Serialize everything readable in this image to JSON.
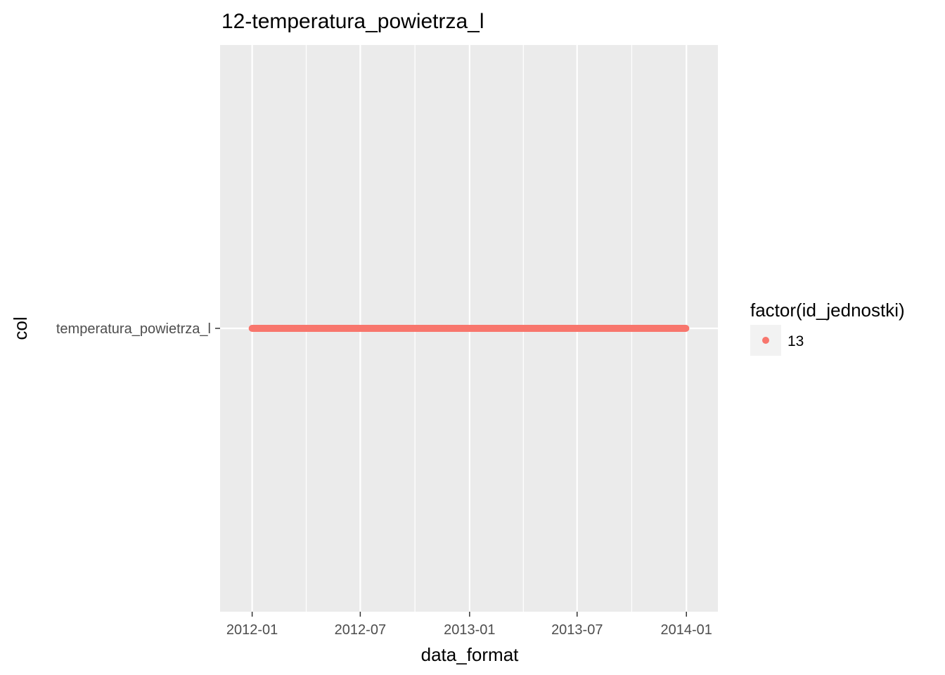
{
  "chart_data": {
    "type": "scatter",
    "title": "12-temperatura_powietrza_l",
    "xlabel": "data_format",
    "ylabel": "col",
    "x_ticks": [
      "2012-01",
      "2012-07",
      "2013-01",
      "2013-07",
      "2014-01"
    ],
    "x_tick_dates": [
      "2012-01-01",
      "2012-07-01",
      "2013-01-01",
      "2013-07-01",
      "2014-01-01"
    ],
    "xlim": [
      "2011-11-08",
      "2014-02-23"
    ],
    "y_categories": [
      "temperatura_powietrza_l"
    ],
    "grid": true,
    "legend": {
      "title": "factor(id_jednostki)",
      "position": "right",
      "entries": [
        {
          "label": "13",
          "color": "#F8766D"
        }
      ]
    },
    "series": [
      {
        "name": "13",
        "color": "#F8766D",
        "category": "temperatura_powietrza_l",
        "x_start": "2012-01-01",
        "x_end": "2013-12-31",
        "frequency": "daily"
      }
    ]
  }
}
